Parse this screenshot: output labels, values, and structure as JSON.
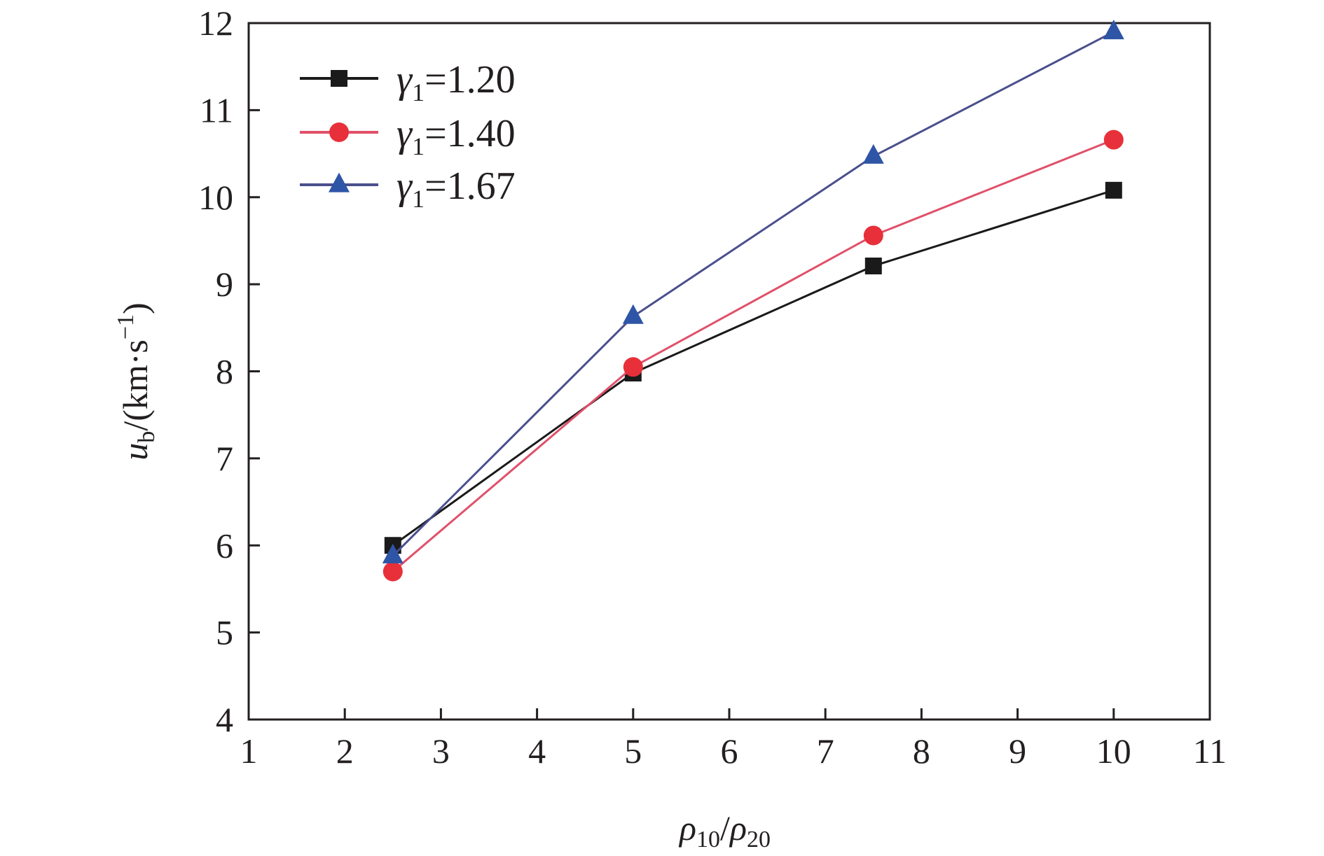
{
  "chart_data": {
    "type": "line",
    "title": "",
    "xlabel": {
      "base": "ρ",
      "sub1": "10",
      "sep": "/",
      "base2": "ρ",
      "sub2": "20"
    },
    "ylabel": {
      "base": "u",
      "sub": "b",
      "unit_prefix": "/(km·s",
      "sup": "−1",
      "unit_suffix": ")"
    },
    "xlim": [
      1,
      11
    ],
    "ylim": [
      4,
      12
    ],
    "xticks": [
      "1",
      "2",
      "3",
      "4",
      "5",
      "6",
      "7",
      "8",
      "9",
      "10",
      "11"
    ],
    "yticks": [
      "4",
      "5",
      "6",
      "7",
      "8",
      "9",
      "10",
      "11",
      "12"
    ],
    "grid": false,
    "legend_position": "top-left",
    "x": [
      2.5,
      5,
      7.5,
      10
    ],
    "series": [
      {
        "name": {
          "sym": "γ",
          "sub": "1",
          "val": "=1.20"
        },
        "marker": "square",
        "color": "#1a1a1a",
        "values": [
          6.0,
          7.98,
          9.21,
          10.08
        ]
      },
      {
        "name": {
          "sym": "γ",
          "sub": "1",
          "val": "=1.40"
        },
        "marker": "circle",
        "color": "#e8303a",
        "line_color": "#e0506a",
        "values": [
          5.7,
          8.05,
          9.56,
          10.66
        ]
      },
      {
        "name": {
          "sym": "γ",
          "sub": "1",
          "val": "=1.67"
        },
        "marker": "triangle",
        "color": "#2e55a6",
        "line_color": "#4a4f8c",
        "values": [
          5.88,
          8.63,
          10.47,
          11.9
        ]
      }
    ]
  }
}
